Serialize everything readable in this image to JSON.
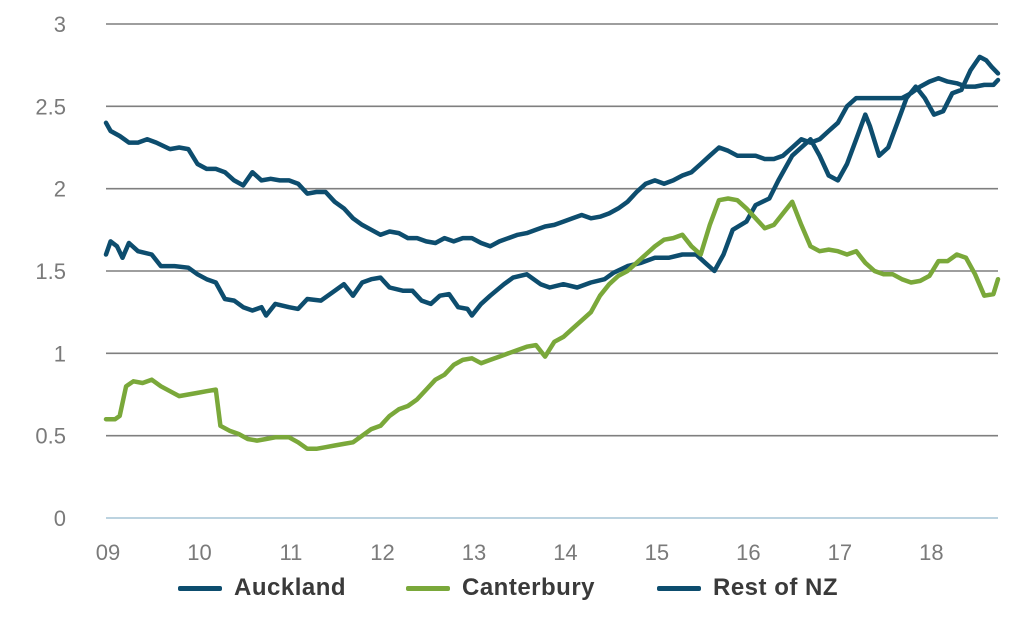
{
  "chart_data": {
    "type": "line",
    "title": "",
    "xlabel": "",
    "ylabel": "",
    "ylim": [
      0,
      3
    ],
    "xlim": [
      9,
      18.75
    ],
    "y_ticks": [
      "0",
      "0.5",
      "1",
      "1.5",
      "2",
      "2.5",
      "3"
    ],
    "y_tick_values": [
      0,
      0.5,
      1,
      1.5,
      2,
      2.5,
      3
    ],
    "x_ticks": [
      "09",
      "10",
      "11",
      "12",
      "13",
      "14",
      "15",
      "16",
      "17",
      "18"
    ],
    "x_tick_values": [
      9,
      10,
      11,
      12,
      13,
      14,
      15,
      16,
      17,
      18
    ],
    "grid": "horizontal",
    "legend_position": "bottom",
    "series": [
      {
        "name": "Auckland",
        "color": "#0d4d6e",
        "points": [
          [
            9.0,
            1.6
          ],
          [
            9.05,
            1.68
          ],
          [
            9.12,
            1.65
          ],
          [
            9.18,
            1.58
          ],
          [
            9.25,
            1.67
          ],
          [
            9.35,
            1.62
          ],
          [
            9.5,
            1.6
          ],
          [
            9.6,
            1.53
          ],
          [
            9.75,
            1.53
          ],
          [
            9.9,
            1.52
          ],
          [
            10.0,
            1.48
          ],
          [
            10.1,
            1.45
          ],
          [
            10.2,
            1.43
          ],
          [
            10.3,
            1.33
          ],
          [
            10.4,
            1.32
          ],
          [
            10.5,
            1.28
          ],
          [
            10.6,
            1.26
          ],
          [
            10.7,
            1.28
          ],
          [
            10.75,
            1.23
          ],
          [
            10.85,
            1.3
          ],
          [
            11.0,
            1.28
          ],
          [
            11.1,
            1.27
          ],
          [
            11.2,
            1.33
          ],
          [
            11.35,
            1.32
          ],
          [
            11.5,
            1.38
          ],
          [
            11.6,
            1.42
          ],
          [
            11.7,
            1.35
          ],
          [
            11.8,
            1.43
          ],
          [
            11.9,
            1.45
          ],
          [
            12.0,
            1.46
          ],
          [
            12.1,
            1.4
          ],
          [
            12.25,
            1.38
          ],
          [
            12.35,
            1.38
          ],
          [
            12.45,
            1.32
          ],
          [
            12.55,
            1.3
          ],
          [
            12.65,
            1.35
          ],
          [
            12.75,
            1.36
          ],
          [
            12.85,
            1.28
          ],
          [
            12.95,
            1.27
          ],
          [
            13.0,
            1.23
          ],
          [
            13.1,
            1.3
          ],
          [
            13.2,
            1.35
          ],
          [
            13.35,
            1.42
          ],
          [
            13.45,
            1.46
          ],
          [
            13.6,
            1.48
          ],
          [
            13.75,
            1.42
          ],
          [
            13.85,
            1.4
          ],
          [
            14.0,
            1.42
          ],
          [
            14.15,
            1.4
          ],
          [
            14.3,
            1.43
          ],
          [
            14.45,
            1.45
          ],
          [
            14.55,
            1.49
          ],
          [
            14.7,
            1.53
          ],
          [
            14.85,
            1.55
          ],
          [
            15.0,
            1.58
          ],
          [
            15.15,
            1.58
          ],
          [
            15.3,
            1.6
          ],
          [
            15.45,
            1.6
          ],
          [
            15.55,
            1.55
          ],
          [
            15.65,
            1.5
          ],
          [
            15.75,
            1.6
          ],
          [
            15.85,
            1.75
          ],
          [
            16.0,
            1.8
          ],
          [
            16.1,
            1.9
          ],
          [
            16.25,
            1.94
          ],
          [
            16.35,
            2.05
          ],
          [
            16.5,
            2.2
          ],
          [
            16.6,
            2.25
          ],
          [
            16.7,
            2.3
          ],
          [
            16.8,
            2.2
          ],
          [
            16.9,
            2.08
          ],
          [
            17.0,
            2.05
          ],
          [
            17.1,
            2.15
          ],
          [
            17.2,
            2.3
          ],
          [
            17.3,
            2.45
          ],
          [
            17.35,
            2.38
          ],
          [
            17.45,
            2.2
          ],
          [
            17.55,
            2.25
          ],
          [
            17.65,
            2.4
          ],
          [
            17.75,
            2.55
          ],
          [
            17.85,
            2.62
          ],
          [
            17.95,
            2.55
          ],
          [
            18.05,
            2.45
          ],
          [
            18.15,
            2.47
          ],
          [
            18.25,
            2.58
          ],
          [
            18.35,
            2.6
          ],
          [
            18.45,
            2.72
          ],
          [
            18.55,
            2.8
          ],
          [
            18.62,
            2.78
          ],
          [
            18.68,
            2.74
          ],
          [
            18.75,
            2.7
          ]
        ]
      },
      {
        "name": "Canterbury",
        "color": "#7aa83a",
        "points": [
          [
            9.0,
            0.6
          ],
          [
            9.1,
            0.6
          ],
          [
            9.15,
            0.62
          ],
          [
            9.22,
            0.8
          ],
          [
            9.3,
            0.83
          ],
          [
            9.4,
            0.82
          ],
          [
            9.5,
            0.84
          ],
          [
            9.6,
            0.8
          ],
          [
            9.7,
            0.77
          ],
          [
            9.8,
            0.74
          ],
          [
            9.9,
            0.75
          ],
          [
            10.0,
            0.76
          ],
          [
            10.1,
            0.77
          ],
          [
            10.2,
            0.78
          ],
          [
            10.25,
            0.56
          ],
          [
            10.35,
            0.53
          ],
          [
            10.45,
            0.51
          ],
          [
            10.55,
            0.48
          ],
          [
            10.65,
            0.47
          ],
          [
            10.75,
            0.48
          ],
          [
            10.85,
            0.49
          ],
          [
            11.0,
            0.49
          ],
          [
            11.1,
            0.46
          ],
          [
            11.2,
            0.42
          ],
          [
            11.3,
            0.42
          ],
          [
            11.4,
            0.43
          ],
          [
            11.5,
            0.44
          ],
          [
            11.6,
            0.45
          ],
          [
            11.7,
            0.46
          ],
          [
            11.8,
            0.5
          ],
          [
            11.9,
            0.54
          ],
          [
            12.0,
            0.56
          ],
          [
            12.1,
            0.62
          ],
          [
            12.2,
            0.66
          ],
          [
            12.3,
            0.68
          ],
          [
            12.4,
            0.72
          ],
          [
            12.5,
            0.78
          ],
          [
            12.6,
            0.84
          ],
          [
            12.7,
            0.87
          ],
          [
            12.8,
            0.93
          ],
          [
            12.9,
            0.96
          ],
          [
            13.0,
            0.97
          ],
          [
            13.1,
            0.94
          ],
          [
            13.2,
            0.96
          ],
          [
            13.3,
            0.98
          ],
          [
            13.4,
            1.0
          ],
          [
            13.5,
            1.02
          ],
          [
            13.6,
            1.04
          ],
          [
            13.7,
            1.05
          ],
          [
            13.8,
            0.98
          ],
          [
            13.9,
            1.07
          ],
          [
            14.0,
            1.1
          ],
          [
            14.1,
            1.15
          ],
          [
            14.2,
            1.2
          ],
          [
            14.3,
            1.25
          ],
          [
            14.4,
            1.35
          ],
          [
            14.5,
            1.42
          ],
          [
            14.6,
            1.47
          ],
          [
            14.7,
            1.5
          ],
          [
            14.8,
            1.55
          ],
          [
            14.9,
            1.6
          ],
          [
            15.0,
            1.65
          ],
          [
            15.1,
            1.69
          ],
          [
            15.2,
            1.7
          ],
          [
            15.3,
            1.72
          ],
          [
            15.4,
            1.65
          ],
          [
            15.5,
            1.6
          ],
          [
            15.6,
            1.78
          ],
          [
            15.7,
            1.93
          ],
          [
            15.8,
            1.94
          ],
          [
            15.9,
            1.93
          ],
          [
            16.0,
            1.88
          ],
          [
            16.1,
            1.82
          ],
          [
            16.2,
            1.76
          ],
          [
            16.3,
            1.78
          ],
          [
            16.4,
            1.85
          ],
          [
            16.5,
            1.92
          ],
          [
            16.6,
            1.78
          ],
          [
            16.7,
            1.65
          ],
          [
            16.8,
            1.62
          ],
          [
            16.9,
            1.63
          ],
          [
            17.0,
            1.62
          ],
          [
            17.1,
            1.6
          ],
          [
            17.2,
            1.62
          ],
          [
            17.3,
            1.55
          ],
          [
            17.4,
            1.5
          ],
          [
            17.5,
            1.48
          ],
          [
            17.6,
            1.48
          ],
          [
            17.7,
            1.45
          ],
          [
            17.8,
            1.43
          ],
          [
            17.9,
            1.44
          ],
          [
            18.0,
            1.47
          ],
          [
            18.1,
            1.56
          ],
          [
            18.2,
            1.56
          ],
          [
            18.3,
            1.6
          ],
          [
            18.4,
            1.58
          ],
          [
            18.5,
            1.48
          ],
          [
            18.6,
            1.35
          ],
          [
            18.7,
            1.36
          ],
          [
            18.75,
            1.45
          ]
        ]
      },
      {
        "name": "Rest of NZ",
        "color": "#0d4d6e",
        "points": [
          [
            9.0,
            2.4
          ],
          [
            9.05,
            2.35
          ],
          [
            9.15,
            2.32
          ],
          [
            9.25,
            2.28
          ],
          [
            9.35,
            2.28
          ],
          [
            9.45,
            2.3
          ],
          [
            9.55,
            2.28
          ],
          [
            9.7,
            2.24
          ],
          [
            9.8,
            2.25
          ],
          [
            9.9,
            2.24
          ],
          [
            10.0,
            2.15
          ],
          [
            10.1,
            2.12
          ],
          [
            10.2,
            2.12
          ],
          [
            10.3,
            2.1
          ],
          [
            10.4,
            2.05
          ],
          [
            10.5,
            2.02
          ],
          [
            10.6,
            2.1
          ],
          [
            10.7,
            2.05
          ],
          [
            10.8,
            2.06
          ],
          [
            10.9,
            2.05
          ],
          [
            11.0,
            2.05
          ],
          [
            11.1,
            2.03
          ],
          [
            11.2,
            1.97
          ],
          [
            11.3,
            1.98
          ],
          [
            11.4,
            1.98
          ],
          [
            11.5,
            1.92
          ],
          [
            11.6,
            1.88
          ],
          [
            11.7,
            1.82
          ],
          [
            11.8,
            1.78
          ],
          [
            11.9,
            1.75
          ],
          [
            12.0,
            1.72
          ],
          [
            12.1,
            1.74
          ],
          [
            12.2,
            1.73
          ],
          [
            12.3,
            1.7
          ],
          [
            12.4,
            1.7
          ],
          [
            12.5,
            1.68
          ],
          [
            12.6,
            1.67
          ],
          [
            12.7,
            1.7
          ],
          [
            12.8,
            1.68
          ],
          [
            12.9,
            1.7
          ],
          [
            13.0,
            1.7
          ],
          [
            13.1,
            1.67
          ],
          [
            13.2,
            1.65
          ],
          [
            13.3,
            1.68
          ],
          [
            13.4,
            1.7
          ],
          [
            13.5,
            1.72
          ],
          [
            13.6,
            1.73
          ],
          [
            13.7,
            1.75
          ],
          [
            13.8,
            1.77
          ],
          [
            13.9,
            1.78
          ],
          [
            14.0,
            1.8
          ],
          [
            14.1,
            1.82
          ],
          [
            14.2,
            1.84
          ],
          [
            14.3,
            1.82
          ],
          [
            14.4,
            1.83
          ],
          [
            14.5,
            1.85
          ],
          [
            14.6,
            1.88
          ],
          [
            14.7,
            1.92
          ],
          [
            14.8,
            1.98
          ],
          [
            14.9,
            2.03
          ],
          [
            15.0,
            2.05
          ],
          [
            15.1,
            2.03
          ],
          [
            15.2,
            2.05
          ],
          [
            15.3,
            2.08
          ],
          [
            15.4,
            2.1
          ],
          [
            15.5,
            2.15
          ],
          [
            15.6,
            2.2
          ],
          [
            15.7,
            2.25
          ],
          [
            15.8,
            2.23
          ],
          [
            15.9,
            2.2
          ],
          [
            16.0,
            2.2
          ],
          [
            16.1,
            2.2
          ],
          [
            16.2,
            2.18
          ],
          [
            16.3,
            2.18
          ],
          [
            16.4,
            2.2
          ],
          [
            16.5,
            2.25
          ],
          [
            16.6,
            2.3
          ],
          [
            16.7,
            2.28
          ],
          [
            16.8,
            2.3
          ],
          [
            16.9,
            2.35
          ],
          [
            17.0,
            2.4
          ],
          [
            17.1,
            2.5
          ],
          [
            17.2,
            2.55
          ],
          [
            17.3,
            2.55
          ],
          [
            17.4,
            2.55
          ],
          [
            17.5,
            2.55
          ],
          [
            17.6,
            2.55
          ],
          [
            17.7,
            2.55
          ],
          [
            17.8,
            2.58
          ],
          [
            17.9,
            2.62
          ],
          [
            18.0,
            2.65
          ],
          [
            18.1,
            2.67
          ],
          [
            18.2,
            2.65
          ],
          [
            18.3,
            2.64
          ],
          [
            18.4,
            2.62
          ],
          [
            18.5,
            2.62
          ],
          [
            18.6,
            2.63
          ],
          [
            18.7,
            2.63
          ],
          [
            18.75,
            2.66
          ]
        ]
      }
    ]
  }
}
